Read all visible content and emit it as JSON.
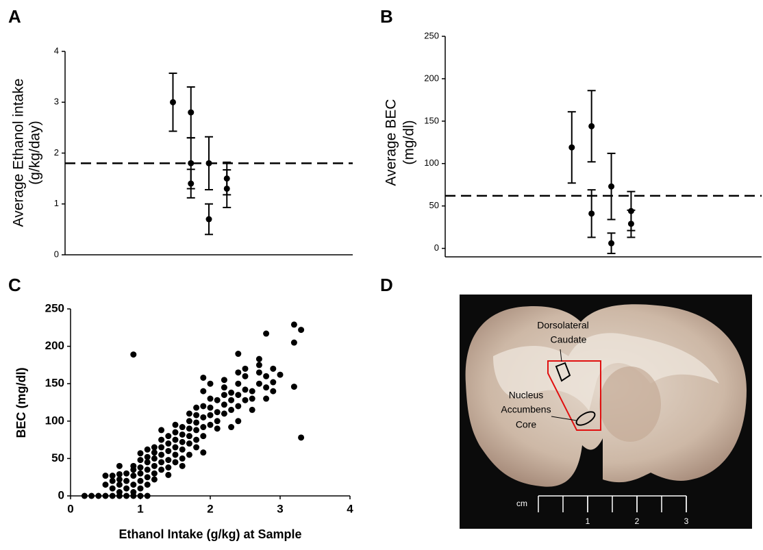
{
  "chart_data": [
    {
      "type": "errorbar",
      "panel": "A",
      "ylabel": [
        "Average Ethanol intake",
        "(g/kg/day)"
      ],
      "xlim": [
        0,
        16
      ],
      "ylim": [
        0,
        4
      ],
      "yticks": [
        0,
        1,
        2,
        3,
        4
      ],
      "reference_line": 1.8,
      "color": "#000000",
      "x": [
        6,
        7,
        7,
        7,
        8,
        8,
        9,
        9
      ],
      "values": [
        3.0,
        2.8,
        1.8,
        1.4,
        1.8,
        0.7,
        1.5,
        1.3
      ],
      "errors": [
        0.57,
        0.5,
        0.5,
        0.28,
        0.52,
        0.3,
        0.32,
        0.37
      ]
    },
    {
      "type": "errorbar",
      "panel": "B",
      "ylabel": [
        "Average BEC",
        "(mg/dl)"
      ],
      "xlim": [
        0,
        16
      ],
      "ylim": [
        -10,
        250
      ],
      "yticks": [
        0,
        50,
        100,
        150,
        200,
        250
      ],
      "reference_line": 62,
      "color": "#000000",
      "x": [
        6.4,
        7.4,
        7.4,
        8.4,
        8.4,
        9.4,
        9.4
      ],
      "values": [
        119,
        144,
        41,
        73,
        6,
        44,
        29
      ],
      "errors": [
        42,
        42,
        28,
        39,
        12,
        23,
        16
      ]
    },
    {
      "type": "scatter",
      "panel": "C",
      "xlabel": "Ethanol Intake (g/kg) at Sample",
      "ylabel": "BEC (mg/dl)",
      "xlim": [
        0,
        4
      ],
      "ylim": [
        0,
        250
      ],
      "xticks": [
        0,
        1,
        2,
        3,
        4
      ],
      "yticks": [
        0,
        50,
        100,
        150,
        200,
        250
      ],
      "color": "#000000",
      "x": [
        0.2,
        0.3,
        0.4,
        0.5,
        0.6,
        0.7,
        0.8,
        0.9,
        1.0,
        1.1,
        0.9,
        0.5,
        0.5,
        0.6,
        0.6,
        0.6,
        0.7,
        0.7,
        0.7,
        0.7,
        0.7,
        0.8,
        0.8,
        0.8,
        0.9,
        0.9,
        0.9,
        0.9,
        0.9,
        1.0,
        1.0,
        1.0,
        1.0,
        1.0,
        1.0,
        1.1,
        1.1,
        1.1,
        1.1,
        1.1,
        1.1,
        1.2,
        1.2,
        1.2,
        1.2,
        1.2,
        1.2,
        1.3,
        1.3,
        1.3,
        1.3,
        1.3,
        1.3,
        1.4,
        1.4,
        1.4,
        1.4,
        1.4,
        1.4,
        1.5,
        1.5,
        1.5,
        1.5,
        1.5,
        1.5,
        1.6,
        1.6,
        1.6,
        1.6,
        1.6,
        1.6,
        1.7,
        1.7,
        1.7,
        1.7,
        1.7,
        1.7,
        1.8,
        1.8,
        1.8,
        1.8,
        1.8,
        1.8,
        1.9,
        1.9,
        1.9,
        1.9,
        1.9,
        1.9,
        1.9,
        2.0,
        2.0,
        2.0,
        2.0,
        2.0,
        2.1,
        2.1,
        2.1,
        2.1,
        2.2,
        2.2,
        2.2,
        2.2,
        2.2,
        2.3,
        2.3,
        2.3,
        2.3,
        2.4,
        2.4,
        2.4,
        2.4,
        2.4,
        2.4,
        2.5,
        2.5,
        2.5,
        2.5,
        2.6,
        2.6,
        2.6,
        2.7,
        2.7,
        2.7,
        2.7,
        2.8,
        2.8,
        2.8,
        2.8,
        2.9,
        2.9,
        2.9,
        3.0,
        3.2,
        3.2,
        3.2,
        3.3,
        3.3
      ],
      "values": [
        0,
        0,
        0,
        0,
        0,
        0,
        0,
        0,
        0,
        0,
        189,
        27,
        15,
        10,
        20,
        27,
        5,
        15,
        22,
        29,
        40,
        10,
        20,
        30,
        15,
        27,
        35,
        40,
        5,
        20,
        30,
        38,
        48,
        57,
        10,
        25,
        35,
        45,
        52,
        62,
        15,
        30,
        40,
        50,
        58,
        65,
        22,
        35,
        45,
        55,
        65,
        75,
        88,
        38,
        48,
        60,
        70,
        80,
        28,
        45,
        55,
        65,
        75,
        85,
        95,
        50,
        62,
        72,
        82,
        92,
        40,
        55,
        70,
        80,
        90,
        100,
        110,
        65,
        75,
        88,
        98,
        108,
        118,
        58,
        80,
        92,
        105,
        120,
        140,
        158,
        95,
        108,
        118,
        130,
        150,
        100,
        112,
        128,
        90,
        110,
        122,
        135,
        145,
        155,
        92,
        115,
        128,
        138,
        100,
        120,
        135,
        150,
        165,
        190,
        128,
        142,
        160,
        170,
        115,
        130,
        140,
        150,
        165,
        175,
        183,
        130,
        145,
        160,
        217,
        140,
        152,
        170,
        162,
        229,
        205,
        146,
        222,
        78
      ]
    }
  ],
  "image": {
    "panel": "D",
    "labels": [
      [
        "Dorsolateral",
        "Caudate"
      ],
      [
        "Nucleus",
        "Accumbens",
        "Core"
      ]
    ],
    "scale_unit": "cm",
    "scale_ticks": [
      1,
      2,
      3
    ]
  }
}
